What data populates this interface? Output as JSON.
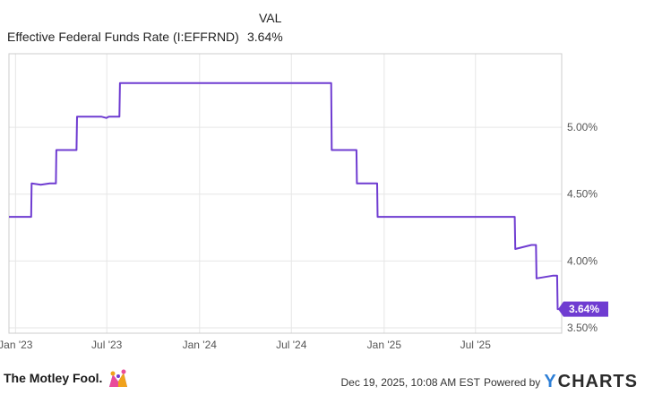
{
  "legend": {
    "header": "VAL",
    "series_name": "Effective Federal Funds Rate (I:EFFRND)",
    "series_value": "3.64%"
  },
  "footer": {
    "brand": "The Motley Fool.",
    "timestamp": "Dec 19, 2025, 10:08 AM EST",
    "powered_by": "Powered by",
    "ycharts_y": "Y",
    "ycharts_rest": "CHARTS"
  },
  "colors": {
    "line": "#6f3cd1",
    "grid": "#e6e6e6",
    "border": "#cccccc",
    "badge": "#6f3cd1"
  },
  "chart_data": {
    "type": "line",
    "title": "",
    "xlabel": "",
    "ylabel": "",
    "y_tick_labels": [
      "3.50%",
      "4.00%",
      "4.50%",
      "5.00%"
    ],
    "y_ticks": [
      3.5,
      4.0,
      4.5,
      5.0
    ],
    "x_tick_labels": [
      "Jan '23",
      "Jul '23",
      "Jan '24",
      "Jul '24",
      "Jan '25",
      "Jul '25"
    ],
    "x_ticks": [
      "2023-01-01",
      "2023-07-01",
      "2024-01-01",
      "2024-07-01",
      "2025-01-01",
      "2025-07-01"
    ],
    "xlim": [
      "2022-12-19",
      "2025-12-19"
    ],
    "ylim": [
      3.46,
      5.55
    ],
    "grid": true,
    "last_value_label": "3.64%",
    "series": [
      {
        "x": [
          "2022-12-19",
          "2023-02-01",
          "2023-02-02",
          "2023-02-20",
          "2023-03-10",
          "2023-03-20",
          "2023-03-22",
          "2023-03-23",
          "2023-05-02",
          "2023-05-03",
          "2023-06-20",
          "2023-06-30",
          "2023-07-05",
          "2023-07-15",
          "2023-07-26",
          "2023-07-27",
          "2024-09-18",
          "2024-09-19",
          "2024-11-07",
          "2024-11-08",
          "2024-12-18",
          "2024-12-19",
          "2025-09-17",
          "2025-09-18",
          "2025-10-20",
          "2025-10-29",
          "2025-10-30",
          "2025-11-15",
          "2025-12-01",
          "2025-12-10",
          "2025-12-11",
          "2025-12-19"
        ],
        "y": [
          4.33,
          4.33,
          4.58,
          4.57,
          4.58,
          4.58,
          4.58,
          4.83,
          4.83,
          5.08,
          5.08,
          5.07,
          5.08,
          5.08,
          5.08,
          5.33,
          5.33,
          4.83,
          4.83,
          4.58,
          4.58,
          4.33,
          4.33,
          4.09,
          4.12,
          4.12,
          3.87,
          3.88,
          3.89,
          3.89,
          3.64,
          3.64
        ]
      }
    ]
  }
}
